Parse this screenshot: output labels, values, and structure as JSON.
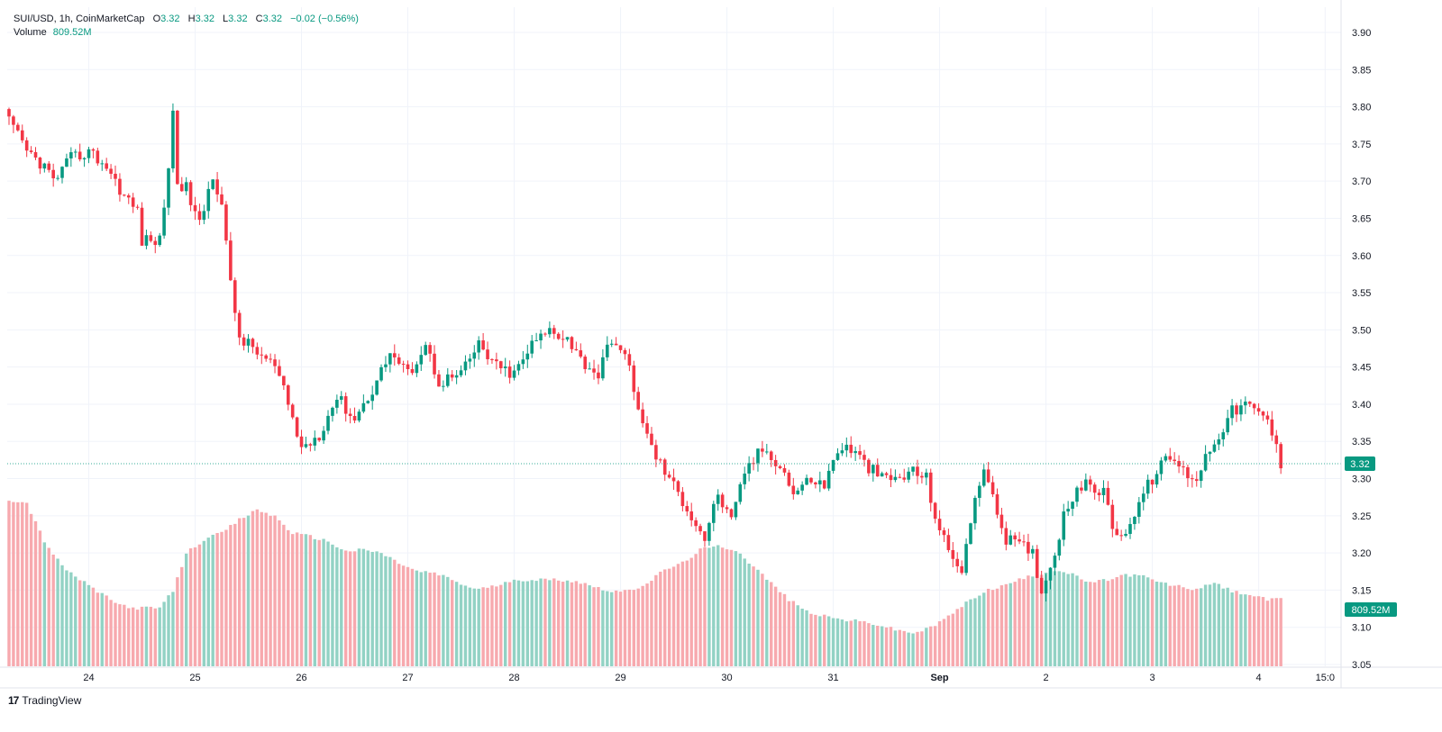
{
  "header": {
    "symbol": "SUI/USD, 1h, CoinMarketCap",
    "open_label": "O",
    "open": "3.32",
    "high_label": "H",
    "high": "3.32",
    "low_label": "L",
    "low": "3.32",
    "close_label": "C",
    "close": "3.32",
    "change": "−0.02 (−0.56%)",
    "volume_label": "Volume",
    "volume_value": "809.52M"
  },
  "footer": {
    "logo": "17",
    "brand": "TradingView"
  },
  "badges": {
    "price": "3.32",
    "volume": "809.52M"
  },
  "colors": {
    "up": "#089981",
    "down": "#f23645",
    "vol_up": "#92d2c4",
    "vol_down": "#f7a9ae",
    "grid": "#f0f3fa"
  },
  "chart_data": {
    "type": "candlestick",
    "title": "",
    "ylim": [
      3.05,
      3.93
    ],
    "y_ticks": [
      "3.90",
      "3.85",
      "3.80",
      "3.75",
      "3.70",
      "3.65",
      "3.60",
      "3.55",
      "3.50",
      "3.45",
      "3.40",
      "3.35",
      "3.30",
      "3.25",
      "3.20",
      "3.15",
      "3.10",
      "3.05"
    ],
    "x_ticks": [
      {
        "label": "24",
        "hour": 18
      },
      {
        "label": "25",
        "hour": 42
      },
      {
        "label": "26",
        "hour": 66
      },
      {
        "label": "27",
        "hour": 90
      },
      {
        "label": "28",
        "hour": 114
      },
      {
        "label": "29",
        "hour": 138
      },
      {
        "label": "30",
        "hour": 162
      },
      {
        "label": "31",
        "hour": 186
      },
      {
        "label": "Sep",
        "hour": 210
      },
      {
        "label": "2",
        "hour": 234
      },
      {
        "label": "3",
        "hour": 258
      },
      {
        "label": "4",
        "hour": 282
      },
      {
        "label": "15:0",
        "hour": 297
      }
    ],
    "last_price": 3.32,
    "close_anchors": [
      [
        0,
        3.78
      ],
      [
        4,
        3.74
      ],
      [
        8,
        3.72
      ],
      [
        10,
        3.7
      ],
      [
        14,
        3.73
      ],
      [
        18,
        3.74
      ],
      [
        22,
        3.72
      ],
      [
        26,
        3.68
      ],
      [
        29,
        3.66
      ],
      [
        30,
        3.62
      ],
      [
        34,
        3.62
      ],
      [
        36,
        3.72
      ],
      [
        37,
        3.79
      ],
      [
        38,
        3.7
      ],
      [
        40,
        3.69
      ],
      [
        43,
        3.64
      ],
      [
        46,
        3.71
      ],
      [
        48,
        3.67
      ],
      [
        50,
        3.56
      ],
      [
        52,
        3.49
      ],
      [
        56,
        3.47
      ],
      [
        60,
        3.45
      ],
      [
        63,
        3.4
      ],
      [
        66,
        3.34
      ],
      [
        70,
        3.36
      ],
      [
        74,
        3.41
      ],
      [
        78,
        3.38
      ],
      [
        82,
        3.42
      ],
      [
        86,
        3.47
      ],
      [
        90,
        3.44
      ],
      [
        94,
        3.48
      ],
      [
        97,
        3.43
      ],
      [
        102,
        3.44
      ],
      [
        106,
        3.48
      ],
      [
        110,
        3.45
      ],
      [
        114,
        3.44
      ],
      [
        118,
        3.48
      ],
      [
        122,
        3.5
      ],
      [
        126,
        3.49
      ],
      [
        129,
        3.46
      ],
      [
        133,
        3.44
      ],
      [
        136,
        3.49
      ],
      [
        140,
        3.45
      ],
      [
        143,
        3.37
      ],
      [
        146,
        3.33
      ],
      [
        149,
        3.3
      ],
      [
        153,
        3.26
      ],
      [
        157,
        3.22
      ],
      [
        160,
        3.28
      ],
      [
        163,
        3.24
      ],
      [
        166,
        3.31
      ],
      [
        170,
        3.34
      ],
      [
        174,
        3.32
      ],
      [
        177,
        3.28
      ],
      [
        181,
        3.3
      ],
      [
        184,
        3.29
      ],
      [
        187,
        3.34
      ],
      [
        190,
        3.34
      ],
      [
        193,
        3.32
      ],
      [
        197,
        3.3
      ],
      [
        201,
        3.3
      ],
      [
        204,
        3.31
      ],
      [
        207,
        3.3
      ],
      [
        209,
        3.25
      ],
      [
        212,
        3.2
      ],
      [
        215,
        3.18
      ],
      [
        217,
        3.24
      ],
      [
        220,
        3.32
      ],
      [
        222,
        3.27
      ],
      [
        225,
        3.22
      ],
      [
        228,
        3.21
      ],
      [
        231,
        3.2
      ],
      [
        233,
        3.15
      ],
      [
        235,
        3.18
      ],
      [
        238,
        3.25
      ],
      [
        241,
        3.29
      ],
      [
        244,
        3.29
      ],
      [
        247,
        3.28
      ],
      [
        250,
        3.22
      ],
      [
        253,
        3.24
      ],
      [
        256,
        3.28
      ],
      [
        259,
        3.31
      ],
      [
        262,
        3.33
      ],
      [
        265,
        3.31
      ],
      [
        268,
        3.3
      ],
      [
        270,
        3.33
      ],
      [
        273,
        3.36
      ],
      [
        276,
        3.39
      ],
      [
        279,
        3.4
      ],
      [
        281,
        3.39
      ],
      [
        284,
        3.38
      ],
      [
        286,
        3.34
      ],
      [
        287,
        3.32
      ]
    ],
    "volume_anchors": [
      [
        0,
        1.0
      ],
      [
        4,
        0.98
      ],
      [
        8,
        0.75
      ],
      [
        12,
        0.6
      ],
      [
        16,
        0.52
      ],
      [
        20,
        0.45
      ],
      [
        24,
        0.38
      ],
      [
        28,
        0.35
      ],
      [
        34,
        0.35
      ],
      [
        37,
        0.45
      ],
      [
        40,
        0.68
      ],
      [
        44,
        0.76
      ],
      [
        48,
        0.8
      ],
      [
        52,
        0.88
      ],
      [
        56,
        0.94
      ],
      [
        60,
        0.9
      ],
      [
        64,
        0.8
      ],
      [
        68,
        0.78
      ],
      [
        72,
        0.75
      ],
      [
        76,
        0.69
      ],
      [
        80,
        0.7
      ],
      [
        84,
        0.68
      ],
      [
        88,
        0.62
      ],
      [
        92,
        0.57
      ],
      [
        96,
        0.56
      ],
      [
        100,
        0.52
      ],
      [
        104,
        0.47
      ],
      [
        108,
        0.47
      ],
      [
        112,
        0.5
      ],
      [
        116,
        0.52
      ],
      [
        120,
        0.52
      ],
      [
        124,
        0.52
      ],
      [
        128,
        0.51
      ],
      [
        132,
        0.48
      ],
      [
        136,
        0.45
      ],
      [
        140,
        0.45
      ],
      [
        144,
        0.5
      ],
      [
        148,
        0.58
      ],
      [
        152,
        0.62
      ],
      [
        156,
        0.7
      ],
      [
        160,
        0.72
      ],
      [
        164,
        0.7
      ],
      [
        168,
        0.6
      ],
      [
        172,
        0.5
      ],
      [
        176,
        0.4
      ],
      [
        180,
        0.33
      ],
      [
        184,
        0.3
      ],
      [
        188,
        0.28
      ],
      [
        192,
        0.27
      ],
      [
        196,
        0.25
      ],
      [
        200,
        0.22
      ],
      [
        204,
        0.2
      ],
      [
        208,
        0.23
      ],
      [
        212,
        0.3
      ],
      [
        216,
        0.38
      ],
      [
        220,
        0.45
      ],
      [
        224,
        0.48
      ],
      [
        228,
        0.52
      ],
      [
        232,
        0.55
      ],
      [
        236,
        0.58
      ],
      [
        240,
        0.55
      ],
      [
        244,
        0.5
      ],
      [
        248,
        0.52
      ],
      [
        252,
        0.55
      ],
      [
        256,
        0.54
      ],
      [
        260,
        0.5
      ],
      [
        264,
        0.48
      ],
      [
        268,
        0.46
      ],
      [
        272,
        0.5
      ],
      [
        276,
        0.45
      ],
      [
        280,
        0.43
      ],
      [
        284,
        0.4
      ],
      [
        287,
        0.4
      ]
    ]
  }
}
